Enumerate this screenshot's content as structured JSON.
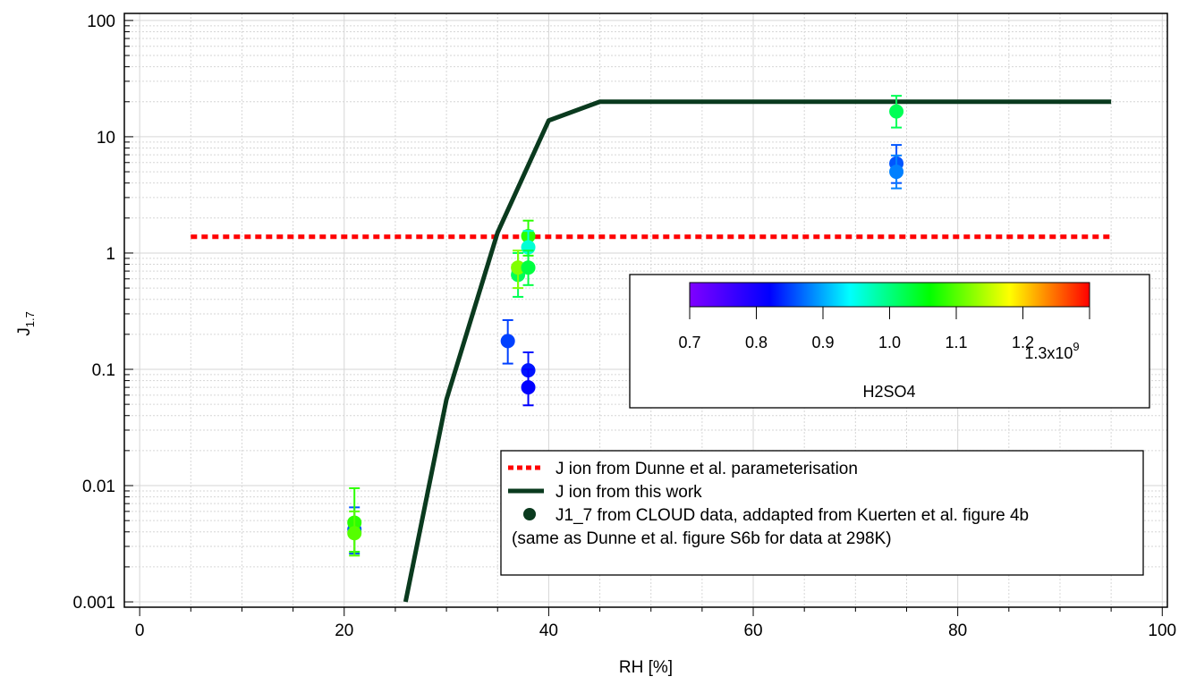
{
  "chart_data": {
    "type": "scatter",
    "xlabel": "RH [%]",
    "ylabel_main": "J",
    "ylabel_sub": "1.7",
    "xlim": [
      -1.5,
      100.5
    ],
    "ylim": [
      0.0009,
      115
    ],
    "yscale": "log",
    "grid": true,
    "x_ticks": [
      0,
      20,
      40,
      60,
      80,
      100
    ],
    "x_tick_labels": [
      "0",
      "20",
      "40",
      "60",
      "80",
      "100"
    ],
    "y_ticks": [
      0.001,
      0.01,
      0.1,
      1,
      10,
      100
    ],
    "y_tick_labels": [
      "0.001",
      "0.01",
      "0.1",
      "1",
      "10",
      "100"
    ],
    "series": [
      {
        "name": "J ion from Dunne et al. parameterisation",
        "kind": "line",
        "style": "dotted",
        "color": "#ff0000",
        "x": [
          5,
          95
        ],
        "y": [
          1.38,
          1.38
        ]
      },
      {
        "name": "J ion from this work",
        "kind": "line",
        "style": "solid",
        "color": "#0a3a1e",
        "x": [
          26,
          30,
          35,
          40,
          45,
          95
        ],
        "y": [
          0.001,
          0.055,
          1.5,
          13.8,
          20,
          20
        ]
      },
      {
        "name": "J1_7 from CLOUD data, addapted from Kuerten et al. figure 4b",
        "kind": "scatter",
        "color": "#0a3a1e",
        "points": [
          {
            "x": 21,
            "y": 0.0042,
            "lo": 0.0026,
            "hi": 0.0065,
            "c": 0.86
          },
          {
            "x": 21,
            "y": 0.0048,
            "lo": 0.0027,
            "hi": 0.0095,
            "c": 1.08
          },
          {
            "x": 21,
            "y": 0.0039,
            "lo": 0.0025,
            "hi": 0.006,
            "c": 1.1
          },
          {
            "x": 36,
            "y": 0.175,
            "lo": 0.112,
            "hi": 0.265,
            "c": 0.85
          },
          {
            "x": 37,
            "y": 0.65,
            "lo": 0.42,
            "hi": 1.0,
            "c": 1.02
          },
          {
            "x": 37,
            "y": 0.75,
            "lo": 0.5,
            "hi": 1.05,
            "c": 1.12
          },
          {
            "x": 38,
            "y": 1.4,
            "lo": 0.95,
            "hi": 1.9,
            "c": 1.08
          },
          {
            "x": 38,
            "y": 1.12,
            "lo": 0.75,
            "hi": 1.55,
            "c": 0.96
          },
          {
            "x": 38,
            "y": 0.75,
            "lo": 0.53,
            "hi": 1.05,
            "c": 1.03
          },
          {
            "x": 38,
            "y": 0.098,
            "lo": 0.065,
            "hi": 0.14,
            "c": 0.83
          },
          {
            "x": 38,
            "y": 0.07,
            "lo": 0.049,
            "hi": 0.1,
            "c": 0.82
          },
          {
            "x": 74,
            "y": 16.5,
            "lo": 12,
            "hi": 22.5,
            "c": 1.02
          },
          {
            "x": 74,
            "y": 5.9,
            "lo": 4.0,
            "hi": 8.5,
            "c": 0.86
          },
          {
            "x": 74,
            "y": 5.0,
            "lo": 3.6,
            "hi": 6.9,
            "c": 0.88
          }
        ]
      }
    ],
    "legend": {
      "position": "bottom-right",
      "entries": [
        "J ion from Dunne et al. parameterisation",
        "J ion from this work",
        "J1_7 from CLOUD data, addapted from Kuerten et al. figure 4b",
        "(same as Dunne et al. figure S6b for data at 298K)"
      ]
    },
    "colorbar": {
      "title": "H2SO4",
      "range": [
        0.7,
        1.3
      ],
      "ticks": [
        0.7,
        0.8,
        0.9,
        1.0,
        1.1,
        1.2,
        1.3
      ],
      "tick_labels": [
        "0.7",
        "0.8",
        "0.9",
        "1.0",
        "1.1",
        "1.2",
        "1.3x10"
      ],
      "exponent": "9",
      "colormap": [
        "#8000ff",
        "#0000ff",
        "#00ffff",
        "#00ff00",
        "#ffff00",
        "#ff0000"
      ]
    }
  }
}
